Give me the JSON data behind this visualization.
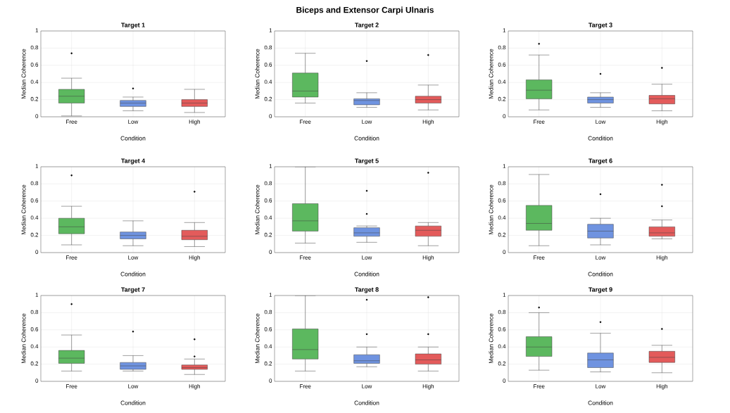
{
  "chart_data": [
    {
      "type": "box",
      "title": "Target 1",
      "xlabel": "Condition",
      "ylabel": "Median Coherence",
      "annotations": [
        "Biceps and Extensor Carpi Ulnaris"
      ],
      "categories": [
        "Free",
        "Low",
        "High"
      ],
      "colors": [
        "#5cb85f",
        "#6f93e0",
        "#e35b5b"
      ],
      "ylim": [
        0,
        1
      ],
      "yticks": [
        0,
        0.2,
        0.4,
        0.6,
        0.8,
        1
      ],
      "grid": true,
      "boxes": [
        {
          "low": 0.01,
          "q1": 0.16,
          "median": 0.24,
          "q3": 0.32,
          "high": 0.45,
          "outliers": [
            0.74
          ]
        },
        {
          "low": 0.07,
          "q1": 0.12,
          "median": 0.16,
          "q3": 0.19,
          "high": 0.23,
          "outliers": [
            0.33
          ]
        },
        {
          "low": 0.05,
          "q1": 0.12,
          "median": 0.16,
          "q3": 0.2,
          "high": 0.32
        }
      ]
    },
    {
      "type": "box",
      "title": "Target 2",
      "xlabel": "Condition",
      "ylabel": "Median Coherence",
      "categories": [
        "Free",
        "Low",
        "High"
      ],
      "colors": [
        "#5cb85f",
        "#6f93e0",
        "#e35b5b"
      ],
      "ylim": [
        0,
        1
      ],
      "yticks": [
        0,
        0.2,
        0.4,
        0.6,
        0.8,
        1
      ],
      "grid": true,
      "boxes": [
        {
          "low": 0.16,
          "q1": 0.23,
          "median": 0.3,
          "q3": 0.51,
          "high": 0.74
        },
        {
          "low": 0.11,
          "q1": 0.14,
          "median": 0.19,
          "q3": 0.21,
          "high": 0.28,
          "outliers": [
            0.65
          ]
        },
        {
          "low": 0.08,
          "q1": 0.16,
          "median": 0.2,
          "q3": 0.24,
          "high": 0.37,
          "outliers": [
            0.72
          ]
        }
      ]
    },
    {
      "type": "box",
      "title": "Target 3",
      "xlabel": "Condition",
      "ylabel": "Median Coherence",
      "categories": [
        "Free",
        "Low",
        "High"
      ],
      "colors": [
        "#5cb85f",
        "#6f93e0",
        "#e35b5b"
      ],
      "ylim": [
        0,
        1
      ],
      "yticks": [
        0,
        0.2,
        0.4,
        0.6,
        0.8,
        1
      ],
      "grid": true,
      "boxes": [
        {
          "low": 0.08,
          "q1": 0.21,
          "median": 0.31,
          "q3": 0.43,
          "high": 0.72,
          "outliers": [
            0.85
          ]
        },
        {
          "low": 0.11,
          "q1": 0.16,
          "median": 0.2,
          "q3": 0.23,
          "high": 0.28,
          "outliers": [
            0.5
          ]
        },
        {
          "low": 0.07,
          "q1": 0.15,
          "median": 0.21,
          "q3": 0.25,
          "high": 0.38,
          "outliers": [
            0.57
          ]
        }
      ]
    },
    {
      "type": "box",
      "title": "Target 4",
      "xlabel": "Condition",
      "ylabel": "Median Coherence",
      "categories": [
        "Free",
        "Low",
        "High"
      ],
      "colors": [
        "#5cb85f",
        "#6f93e0",
        "#e35b5b"
      ],
      "ylim": [
        0,
        1
      ],
      "yticks": [
        0,
        0.2,
        0.4,
        0.6,
        0.8,
        1
      ],
      "grid": true,
      "boxes": [
        {
          "low": 0.09,
          "q1": 0.22,
          "median": 0.3,
          "q3": 0.4,
          "high": 0.54,
          "outliers": [
            0.9
          ]
        },
        {
          "low": 0.08,
          "q1": 0.16,
          "median": 0.2,
          "q3": 0.24,
          "high": 0.37
        },
        {
          "low": 0.07,
          "q1": 0.15,
          "median": 0.19,
          "q3": 0.26,
          "high": 0.35,
          "outliers": [
            0.71
          ]
        }
      ]
    },
    {
      "type": "box",
      "title": "Target 5",
      "xlabel": "Condition",
      "ylabel": "Median Coherence",
      "categories": [
        "Free",
        "Low",
        "High"
      ],
      "colors": [
        "#5cb85f",
        "#6f93e0",
        "#e35b5b"
      ],
      "ylim": [
        0,
        1
      ],
      "yticks": [
        0,
        0.2,
        0.4,
        0.6,
        0.8,
        1
      ],
      "grid": true,
      "boxes": [
        {
          "low": 0.11,
          "q1": 0.25,
          "median": 0.37,
          "q3": 0.57,
          "high": 1.0
        },
        {
          "low": 0.12,
          "q1": 0.19,
          "median": 0.23,
          "q3": 0.29,
          "high": 0.31,
          "outliers": [
            0.45,
            0.72
          ]
        },
        {
          "low": 0.08,
          "q1": 0.19,
          "median": 0.26,
          "q3": 0.31,
          "high": 0.35,
          "outliers": [
            0.93
          ]
        }
      ]
    },
    {
      "type": "box",
      "title": "Target 6",
      "xlabel": "Condition",
      "ylabel": "Median Coherence",
      "categories": [
        "Free",
        "Low",
        "High"
      ],
      "colors": [
        "#5cb85f",
        "#6f93e0",
        "#e35b5b"
      ],
      "ylim": [
        0,
        1
      ],
      "yticks": [
        0,
        0.2,
        0.4,
        0.6,
        0.8,
        1
      ],
      "grid": true,
      "boxes": [
        {
          "low": 0.08,
          "q1": 0.26,
          "median": 0.34,
          "q3": 0.55,
          "high": 0.91
        },
        {
          "low": 0.09,
          "q1": 0.17,
          "median": 0.25,
          "q3": 0.33,
          "high": 0.4,
          "outliers": [
            0.68
          ]
        },
        {
          "low": 0.16,
          "q1": 0.19,
          "median": 0.23,
          "q3": 0.3,
          "high": 0.38,
          "outliers": [
            0.54,
            0.79
          ]
        }
      ]
    },
    {
      "type": "box",
      "title": "Target 7",
      "xlabel": "Condition",
      "ylabel": "Median Coherence",
      "categories": [
        "Free",
        "Low",
        "High"
      ],
      "colors": [
        "#5cb85f",
        "#6f93e0",
        "#e35b5b"
      ],
      "ylim": [
        0,
        1
      ],
      "yticks": [
        0,
        0.2,
        0.4,
        0.6,
        0.8,
        1
      ],
      "grid": true,
      "boxes": [
        {
          "low": 0.12,
          "q1": 0.21,
          "median": 0.27,
          "q3": 0.36,
          "high": 0.54,
          "outliers": [
            0.9
          ]
        },
        {
          "low": 0.12,
          "q1": 0.14,
          "median": 0.18,
          "q3": 0.22,
          "high": 0.3,
          "outliers": [
            0.58
          ]
        },
        {
          "low": 0.08,
          "q1": 0.14,
          "median": 0.16,
          "q3": 0.19,
          "high": 0.26,
          "outliers": [
            0.29,
            0.49
          ]
        }
      ]
    },
    {
      "type": "box",
      "title": "Target 8",
      "xlabel": "Condition",
      "ylabel": "Median Coherence",
      "categories": [
        "Free",
        "Low",
        "High"
      ],
      "colors": [
        "#5cb85f",
        "#6f93e0",
        "#e35b5b"
      ],
      "ylim": [
        0,
        1
      ],
      "yticks": [
        0,
        0.2,
        0.4,
        0.6,
        0.8,
        1
      ],
      "grid": true,
      "boxes": [
        {
          "low": 0.12,
          "q1": 0.26,
          "median": 0.37,
          "q3": 0.61,
          "high": 1.0
        },
        {
          "low": 0.17,
          "q1": 0.21,
          "median": 0.24,
          "q3": 0.31,
          "high": 0.4,
          "outliers": [
            0.55,
            0.95
          ]
        },
        {
          "low": 0.12,
          "q1": 0.2,
          "median": 0.25,
          "q3": 0.32,
          "high": 0.4,
          "outliers": [
            0.55,
            0.98
          ]
        }
      ]
    },
    {
      "type": "box",
      "title": "Target 9",
      "xlabel": "Condition",
      "ylabel": "Median Coherence",
      "categories": [
        "Free",
        "Low",
        "High"
      ],
      "colors": [
        "#5cb85f",
        "#6f93e0",
        "#e35b5b"
      ],
      "ylim": [
        0,
        1
      ],
      "yticks": [
        0,
        0.2,
        0.4,
        0.6,
        0.8,
        1
      ],
      "grid": true,
      "boxes": [
        {
          "low": 0.13,
          "q1": 0.29,
          "median": 0.4,
          "q3": 0.52,
          "high": 0.8,
          "outliers": [
            0.86
          ]
        },
        {
          "low": 0.11,
          "q1": 0.16,
          "median": 0.25,
          "q3": 0.33,
          "high": 0.56,
          "outliers": [
            0.69
          ]
        },
        {
          "low": 0.1,
          "q1": 0.22,
          "median": 0.28,
          "q3": 0.35,
          "high": 0.42,
          "outliers": [
            0.61
          ]
        }
      ]
    }
  ]
}
